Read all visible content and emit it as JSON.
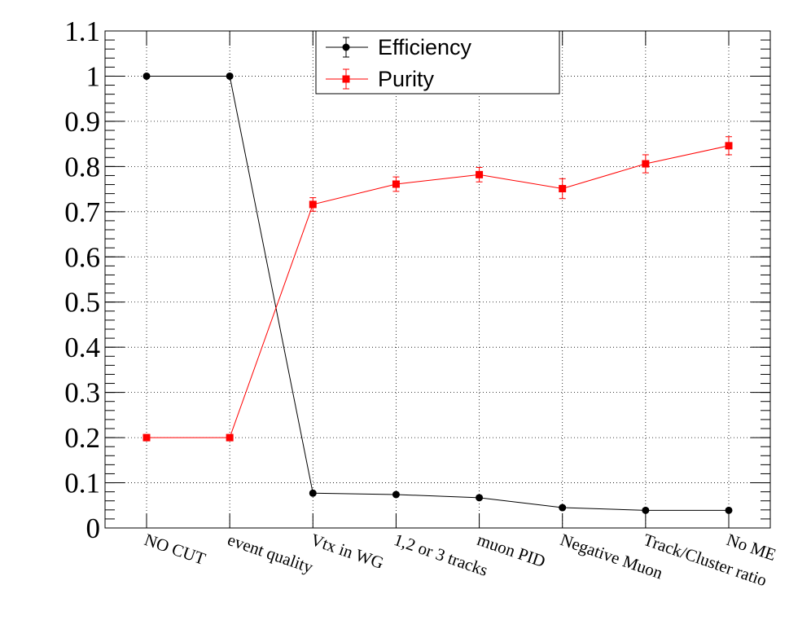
{
  "chart_data": {
    "type": "line",
    "title": "",
    "xlabel": "",
    "ylabel": "",
    "categories": [
      "NO CUT",
      "event quality",
      "Vtx in WG",
      "1,2 or 3 tracks",
      "muon PID",
      "Negative Muon",
      "Track/Cluster ratio",
      "No ME"
    ],
    "ylim": [
      0,
      1.1
    ],
    "yticks": [
      0,
      0.1,
      0.2,
      0.3,
      0.4,
      0.5,
      0.6,
      0.7,
      0.8,
      0.9,
      1,
      1.1
    ],
    "ytick_labels": [
      "0",
      "0.1",
      "0.2",
      "0.3",
      "0.4",
      "0.5",
      "0.6",
      "0.7",
      "0.8",
      "0.9",
      "1",
      "1.1"
    ],
    "grid": true,
    "legend_position": "top-center",
    "series": [
      {
        "name": "Efficiency",
        "color": "#000000",
        "marker": "circle",
        "values": [
          1.0,
          1.0,
          0.077,
          0.074,
          0.067,
          0.045,
          0.039,
          0.039
        ],
        "errors": [
          0,
          0,
          0.003,
          0.003,
          0.003,
          0.003,
          0.003,
          0.003
        ]
      },
      {
        "name": "Purity",
        "color": "#ff0000",
        "marker": "square",
        "values": [
          0.2,
          0.2,
          0.716,
          0.761,
          0.782,
          0.751,
          0.806,
          0.846
        ],
        "errors": [
          0.003,
          0.003,
          0.015,
          0.016,
          0.016,
          0.022,
          0.02,
          0.02
        ]
      }
    ]
  }
}
